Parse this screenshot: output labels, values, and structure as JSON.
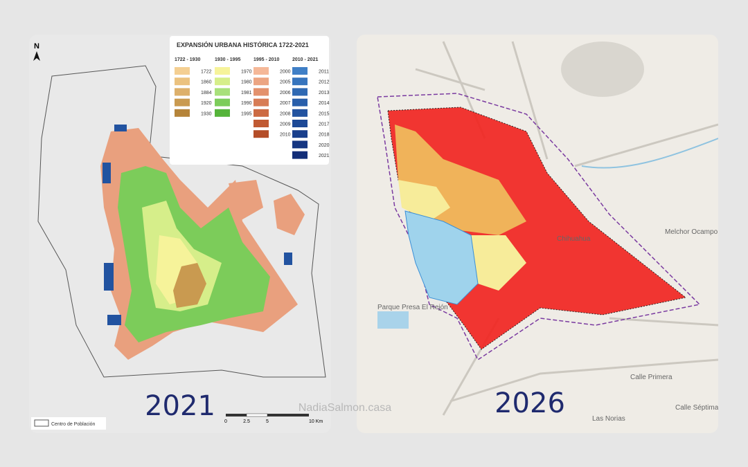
{
  "left_map": {
    "title": "EXPANSIÓN URBANA HISTÓRICA 1722-2021",
    "legend": [
      {
        "period": "1722 - 1930",
        "entries": [
          {
            "year": "1722",
            "color": "#f4cf92"
          },
          {
            "year": "1860",
            "color": "#ebc27f"
          },
          {
            "year": "1884",
            "color": "#ddb06b"
          },
          {
            "year": "1920",
            "color": "#c99a50"
          },
          {
            "year": "1930",
            "color": "#b5843a"
          }
        ]
      },
      {
        "period": "1930 - 1995",
        "entries": [
          {
            "year": "1970",
            "color": "#f6f39a"
          },
          {
            "year": "1980",
            "color": "#d6ee8a"
          },
          {
            "year": "1981",
            "color": "#a8e07a"
          },
          {
            "year": "1990",
            "color": "#7ccc5a"
          },
          {
            "year": "1995",
            "color": "#55b43a"
          }
        ]
      },
      {
        "period": "1995 - 2010",
        "entries": [
          {
            "year": "2000",
            "color": "#f5b898"
          },
          {
            "year": "2005",
            "color": "#eca582"
          },
          {
            "year": "2006",
            "color": "#e3916c"
          },
          {
            "year": "2007",
            "color": "#d77c55"
          },
          {
            "year": "2008",
            "color": "#cc6a42"
          },
          {
            "year": "2009",
            "color": "#c05a33"
          },
          {
            "year": "2010",
            "color": "#b44d28"
          }
        ]
      },
      {
        "period": "2010 - 2021",
        "entries": [
          {
            "year": "2011",
            "color": "#3f7fc6"
          },
          {
            "year": "2012",
            "color": "#3674bd"
          },
          {
            "year": "2013",
            "color": "#2f69b3"
          },
          {
            "year": "2014",
            "color": "#285eaa"
          },
          {
            "year": "2015",
            "color": "#2253a0"
          },
          {
            "year": "2017",
            "color": "#1d4996"
          },
          {
            "year": "2018",
            "color": "#193f8c"
          },
          {
            "year": "2020",
            "color": "#153682"
          },
          {
            "year": "2021",
            "color": "#122d78"
          }
        ]
      }
    ],
    "north": "N",
    "boundary_label": "Centro de Población",
    "scale": [
      "0",
      "2.5",
      "5",
      "10 Km"
    ],
    "caption": "2021"
  },
  "right_map": {
    "places": [
      "Chihuahua",
      "Melchor Ocampo",
      "Parque Presa El Rejón",
      "Las Norias",
      "Calle Primera",
      "Calle Séptima"
    ],
    "caption": "2026"
  },
  "watermark": "NadiaSalmon.casa"
}
